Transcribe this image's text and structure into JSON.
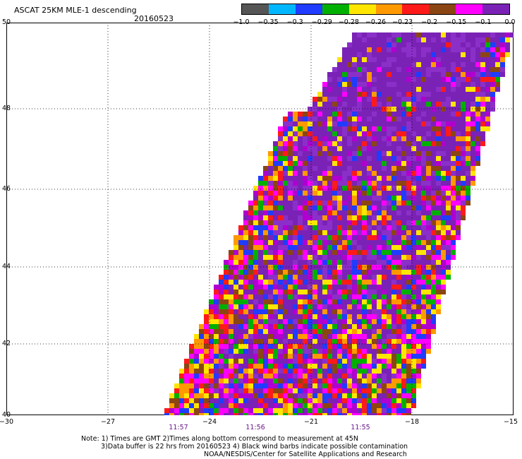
{
  "header": {
    "title": "ASCAT 25KM MLE-1 descending",
    "date": "20160523"
  },
  "colorbar": {
    "colors": [
      "#555555",
      "#00b7ff",
      "#1f3cff",
      "#00b000",
      "#ffe600",
      "#ff9900",
      "#ff1a1a",
      "#8b4513",
      "#ff00ff",
      "#7a22b5"
    ],
    "labels": [
      "−1.0",
      "−0.35",
      "−0.3",
      "−0.29",
      "−0.28",
      "−0.26",
      "−0.23",
      "−0.2",
      "−0.15",
      "−0.1",
      "0.0"
    ]
  },
  "axes": {
    "lat_labels": [
      "50",
      "48",
      "46",
      "44",
      "42",
      "40"
    ],
    "lon_labels": [
      "−30",
      "−27",
      "−24",
      "−21",
      "−18",
      "−15"
    ],
    "time_labels": [
      "11:57",
      "11:56",
      "11:55"
    ]
  },
  "notes": {
    "line1": "Note: 1) Times are GMT 2)Times along bottom correspond to measurement at 45N",
    "line2": "3)Data buffer is 22 hrs from 20160523 4) Black wind barbs indicate possible contamination",
    "line3": "NOAA/NESDIS/Center for Satellite Applications and Research"
  },
  "swath": {
    "description_colors": [
      "#7a22b5",
      "#8b2fc9",
      "#b000d0",
      "#ff00ff",
      "#ff1a1a",
      "#ffe600",
      "#00b000",
      "#1f3cff",
      "#8b4513",
      "#ff9900"
    ]
  }
}
